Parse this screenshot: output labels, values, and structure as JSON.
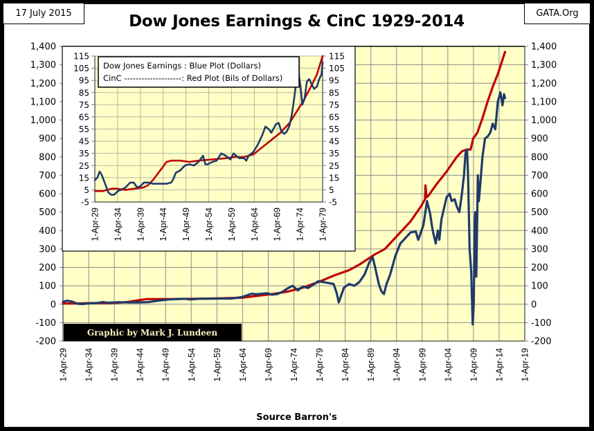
{
  "header": {
    "date": "17 July 2015",
    "site": "GATA.Org",
    "title": "Dow Jones Earnings & CinC 1929-2014"
  },
  "footer": {
    "source": "Source Barron's",
    "credit": "Graphic by Mark J. Lundeen"
  },
  "colors": {
    "plot_bg": "#ffffc6",
    "grid": "#8c8c8c",
    "earnings": "#1f3a68",
    "cinc": "#c00000"
  },
  "chart_data": [
    {
      "id": "main",
      "type": "line",
      "title": "Dow Jones Earnings & CinC 1929-2014",
      "xlabel": "Source Barron's",
      "ylabel": "",
      "xlim": [
        1929.25,
        2019.25
      ],
      "ylim": [
        -200,
        1400
      ],
      "y_ticks": [
        -200,
        -100,
        0,
        100,
        200,
        300,
        400,
        500,
        600,
        700,
        800,
        900,
        1000,
        1100,
        1200,
        1300,
        1400
      ],
      "y_tick_labels": [
        "-200",
        "-100",
        "0",
        "100",
        "200",
        "300",
        "400",
        "500",
        "600",
        "700",
        "800",
        "900",
        "1,000",
        "1,100",
        "1,200",
        "1,300",
        "1,400"
      ],
      "x_ticks": [
        1929.25,
        1934.25,
        1939.25,
        1944.25,
        1949.25,
        1954.25,
        1959.25,
        1964.25,
        1969.25,
        1974.25,
        1979.25,
        1984.25,
        1989.25,
        1994.25,
        1999.25,
        2004.25,
        2009.25,
        2014.25,
        2019.25
      ],
      "x_tick_labels": [
        "1-Apr-29",
        "1-Apr-34",
        "1-Apr-39",
        "1-Apr-44",
        "1-Apr-49",
        "1-Apr-54",
        "1-Apr-59",
        "1-Apr-64",
        "1-Apr-69",
        "1-Apr-74",
        "1-Apr-79",
        "1-Apr-84",
        "1-Apr-89",
        "1-Apr-94",
        "1-Apr-99",
        "1-Apr-04",
        "1-Apr-09",
        "1-Apr-14",
        "1-Apr-19"
      ],
      "grid": true,
      "dual_y_axis": true,
      "series": [
        {
          "name": "Dow Jones Earnings (Dollars)",
          "color": "#1f3a68",
          "x": [
            1929.25,
            1930,
            1931,
            1932,
            1933,
            1934,
            1936,
            1937,
            1938,
            1940,
            1942,
            1944,
            1946,
            1948,
            1950,
            1953,
            1954,
            1956,
            1958,
            1960,
            1962,
            1964,
            1966,
            1967,
            1969,
            1970,
            1971,
            1972,
            1973,
            1974,
            1975,
            1976,
            1977,
            1978,
            1979,
            1980,
            1981,
            1982,
            1982.6,
            1983,
            1984,
            1985,
            1986,
            1987,
            1988,
            1989,
            1989.6,
            1990,
            1990.8,
            1991.3,
            1991.8,
            1992.3,
            1993,
            1994,
            1995,
            1996,
            1997,
            1998,
            1998.5,
            1999.5,
            2000.2,
            2000.8,
            2001.3,
            2001.9,
            2002.3,
            2002.6,
            2003,
            2003.5,
            2004,
            2004.6,
            2005,
            2005.6,
            2006,
            2006.5,
            2007,
            2007.4,
            2007.7,
            2008.0,
            2008.2,
            2008.5,
            2008.8,
            2009.1,
            2009.3,
            2009.5,
            2009.6,
            2009.8,
            2010.0,
            2010.1,
            2010.3,
            2010.6,
            2011,
            2011.5,
            2012,
            2012.5,
            2013,
            2013.5,
            2014,
            2014.5,
            2014.9,
            2015.2,
            2015.4
          ],
          "y": [
            13,
            19,
            15,
            3,
            1,
            4,
            7,
            12,
            8,
            11,
            10,
            10,
            12,
            20,
            26,
            30,
            26,
            30,
            30,
            31,
            31,
            38,
            57,
            54,
            60,
            52,
            55,
            67,
            86,
            100,
            75,
            96,
            88,
            105,
            125,
            120,
            115,
            110,
            60,
            10,
            90,
            110,
            100,
            120,
            160,
            230,
            255,
            210,
            110,
            70,
            55,
            110,
            160,
            260,
            330,
            360,
            390,
            395,
            350,
            430,
            560,
            490,
            400,
            330,
            400,
            350,
            460,
            520,
            580,
            600,
            560,
            570,
            530,
            500,
            600,
            700,
            820,
            840,
            700,
            300,
            180,
            -110,
            0,
            450,
            500,
            150,
            490,
            700,
            560,
            660,
            800,
            900,
            910,
            930,
            980,
            950,
            1100,
            1150,
            1080,
            1140,
            1120
          ]
        },
        {
          "name": "CinC (Bils of Dollars)",
          "color": "#c00000",
          "x": [
            1929.25,
            1932,
            1934,
            1938,
            1940,
            1942,
            1944,
            1945.5,
            1950,
            1955,
            1960,
            1964,
            1966,
            1970,
            1973,
            1976,
            1979,
            1982,
            1985,
            1987,
            1990,
            1992,
            1995,
            1997,
            1999,
            1999.8,
            1999.9,
            2000.1,
            2000.5,
            2002,
            2004,
            2005,
            2006,
            2007,
            2008,
            2008.7,
            2009.2,
            2010,
            2011,
            2012,
            2013,
            2014,
            2014.7,
            2015.4
          ],
          "y": [
            4,
            4,
            6,
            6,
            8,
            13,
            22,
            28,
            28,
            30,
            32,
            35,
            42,
            55,
            68,
            90,
            120,
            155,
            185,
            215,
            270,
            300,
            390,
            450,
            530,
            570,
            645,
            580,
            590,
            650,
            720,
            760,
            800,
            830,
            840,
            840,
            900,
            930,
            1010,
            1100,
            1180,
            1250,
            1310,
            1370
          ]
        }
      ]
    },
    {
      "id": "inset",
      "type": "line",
      "title": "",
      "xlim": [
        1929.25,
        1979.25
      ],
      "ylim": [
        -5,
        115
      ],
      "y_ticks": [
        -5,
        5,
        15,
        25,
        35,
        45,
        55,
        65,
        75,
        85,
        95,
        105,
        115
      ],
      "y_tick_labels": [
        "-5",
        "5",
        "15",
        "25",
        "35",
        "45",
        "55",
        "65",
        "75",
        "85",
        "95",
        "105",
        "115"
      ],
      "x_ticks": [
        1929.25,
        1934.25,
        1939.25,
        1944.25,
        1949.25,
        1954.25,
        1959.25,
        1964.25,
        1969.25,
        1974.25,
        1979.25
      ],
      "x_tick_labels": [
        "1-Apr-29",
        "1-Apr-34",
        "1-Apr-39",
        "1-Apr-44",
        "1-Apr-49",
        "1-Apr-54",
        "1-Apr-59",
        "1-Apr-64",
        "1-Apr-69",
        "1-Apr-74",
        "1-Apr-79"
      ],
      "grid": true,
      "dual_y_axis": true,
      "legend": {
        "position": "top-left",
        "entries": [
          "Dow Jones Earnings : Blue Plot (Dollars)",
          "CinC --------------------:  Red Plot (Bils of Dollars)"
        ]
      },
      "series": [
        {
          "name": "Dow Jones Earnings (Dollars)",
          "color": "#1f3a68",
          "x": [
            1929.25,
            1929.8,
            1930.3,
            1930.8,
            1931.5,
            1932.2,
            1932.8,
            1933.5,
            1934.3,
            1935,
            1936,
            1937,
            1937.8,
            1938.5,
            1939.3,
            1940,
            1941,
            1942,
            1943,
            1944,
            1945,
            1946,
            1946.5,
            1947,
            1948,
            1949,
            1950,
            1951,
            1952,
            1953,
            1953.5,
            1954,
            1955,
            1956,
            1957,
            1958,
            1959,
            1959.7,
            1960.3,
            1961,
            1962,
            1962.5,
            1963,
            1964,
            1965,
            1966,
            1966.7,
            1967.4,
            1968,
            1969,
            1969.6,
            1970.2,
            1970.8,
            1971.4,
            1972,
            1972.5,
            1973,
            1973.5,
            1974,
            1974.4,
            1974.8,
            1975.3,
            1975.8,
            1976.3,
            1976.8,
            1977.4,
            1978,
            1978.5,
            1979,
            1979.25
          ],
          "y": [
            13,
            15,
            20,
            17,
            10,
            3,
            1,
            1,
            4,
            5,
            7,
            11,
            11,
            7,
            8,
            11,
            11,
            10,
            10,
            10,
            10,
            11,
            14,
            19,
            21,
            25,
            26,
            25,
            28,
            33,
            26,
            26,
            28,
            29,
            35,
            33,
            30,
            35,
            33,
            31,
            31,
            29,
            33,
            36,
            42,
            50,
            57,
            55,
            52,
            59,
            60,
            53,
            51,
            53,
            58,
            67,
            80,
            95,
            100,
            90,
            75,
            80,
            94,
            96,
            92,
            88,
            90,
            96,
            100,
            110
          ]
        },
        {
          "name": "CinC (Bils of Dollars)",
          "color": "#c00000",
          "x": [
            1929.25,
            1931,
            1932,
            1933,
            1934,
            1936,
            1938,
            1940,
            1941,
            1942,
            1943,
            1944,
            1945,
            1946,
            1948,
            1950,
            1952,
            1955,
            1958,
            1960,
            1962,
            1964,
            1966,
            1968,
            1970,
            1972,
            1974,
            1975,
            1976,
            1977,
            1978,
            1979.25
          ],
          "y": [
            4,
            4,
            5,
            6,
            6,
            5,
            6,
            7,
            9,
            13,
            18,
            23,
            28,
            29,
            29,
            28,
            29,
            30,
            31,
            32,
            32,
            34,
            40,
            46,
            52,
            60,
            72,
            78,
            85,
            92,
            100,
            115
          ]
        }
      ]
    }
  ]
}
